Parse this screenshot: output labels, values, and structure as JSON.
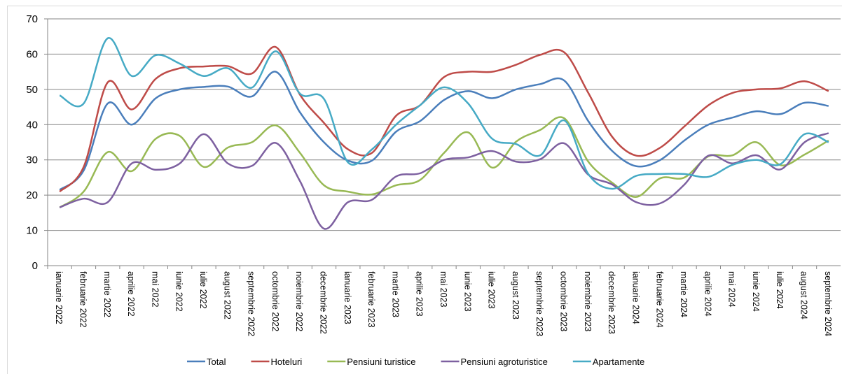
{
  "chart_data": {
    "type": "line",
    "categories": [
      "ianuarie 2022",
      "februarie 2022",
      "martie 2022",
      "aprilie 2022",
      "mai 2022",
      "iunie 2022",
      "iulie 2022",
      "august 2022",
      "septembrie 2022",
      "octombrie 2022",
      "noiembrie 2022",
      "decembrie 2022",
      "ianuarie 2023",
      "februarie 2023",
      "martie 2023",
      "aprilie 2023",
      "mai 2023",
      "iunie 2023",
      "iulie 2023",
      "august 2023",
      "septembrie 2023",
      "octombrie 2023",
      "noiembrie 2023",
      "decembrie 2023",
      "ianuarie 2024",
      "februarie 2024",
      "martie 2024",
      "aprilie 2024",
      "mai 2024",
      "iunie 2024",
      "iulie 2024",
      "august 2024",
      "septembrie 2024"
    ],
    "series": [
      {
        "name": "Total",
        "color": "#4a7ebb",
        "values": [
          21.5,
          27,
          46,
          40,
          47.5,
          50,
          50.7,
          50.8,
          48,
          55,
          43.5,
          35,
          29.8,
          29.8,
          38,
          41,
          47,
          49.5,
          47.5,
          50,
          51.5,
          52.5,
          41,
          32.5,
          28.2,
          30,
          35.5,
          40,
          42,
          43.8,
          43,
          46.2,
          45.3
        ]
      },
      {
        "name": "Hoteluri",
        "color": "#be4b48",
        "values": [
          21,
          28,
          52,
          44.3,
          53,
          56,
          56.5,
          56.6,
          54.5,
          62,
          48.5,
          40.5,
          33,
          32,
          42.5,
          45.5,
          53.5,
          55,
          55,
          57,
          59.8,
          60.5,
          49,
          36.5,
          31.2,
          33.5,
          39.5,
          45.5,
          49,
          50,
          50.3,
          52.3,
          49.5
        ]
      },
      {
        "name": "Pensiuni turistice",
        "color": "#98b954",
        "values": [
          16.5,
          21,
          32.2,
          26.8,
          36,
          36.8,
          28,
          33.5,
          35,
          39.8,
          32,
          22.8,
          21,
          20.2,
          22.8,
          24.3,
          32,
          37.8,
          27.8,
          35.2,
          38.5,
          41.8,
          29.5,
          23.5,
          19.5,
          24.8,
          25,
          31,
          31.3,
          35,
          28.5,
          31.5,
          35.5
        ]
      },
      {
        "name": "Pensiuni agroturistice",
        "color": "#7d60a0",
        "values": [
          16.5,
          19,
          18,
          29,
          27.2,
          29,
          37.3,
          29,
          28.3,
          34.8,
          24,
          10.5,
          18,
          18.7,
          25.3,
          26.2,
          30,
          30.7,
          32.5,
          29.5,
          30.2,
          34.7,
          25.8,
          23,
          18,
          17.7,
          23,
          31.2,
          29,
          31.3,
          27.3,
          35,
          37.6
        ]
      },
      {
        "name": "Apartamente",
        "color": "#46aac5",
        "values": [
          48.3,
          46,
          64.5,
          53.8,
          59.7,
          57.3,
          53.8,
          56,
          50.5,
          60.8,
          48.8,
          47.3,
          29.3,
          33,
          40,
          45.5,
          50.6,
          46,
          36,
          34.5,
          31.3,
          41.2,
          26,
          21.8,
          25.5,
          26,
          26,
          25.2,
          28.6,
          30,
          28.8,
          37.3,
          35
        ]
      }
    ],
    "ylim": [
      0,
      70
    ],
    "yticks": [
      0,
      10,
      20,
      30,
      40,
      50,
      60,
      70
    ],
    "grid": true,
    "legend": "bottom"
  }
}
